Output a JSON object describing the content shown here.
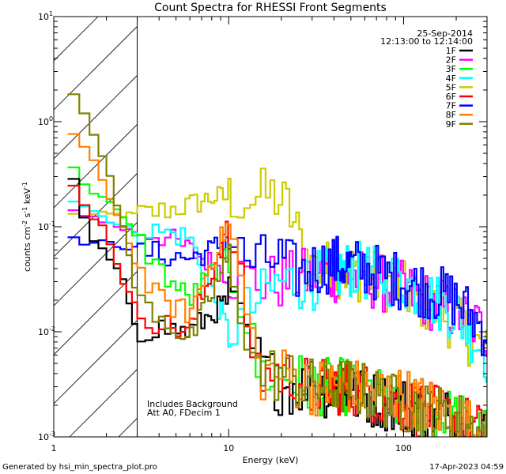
{
  "chart_data": {
    "type": "line",
    "title": "Count Spectra for RHESSI Front Segments",
    "xlabel": "Energy (keV)",
    "ylabel_parts": [
      "counts cm",
      "-2",
      " s",
      "-1",
      " keV",
      "-1"
    ],
    "xscale": "log",
    "yscale": "log",
    "xlim": [
      1,
      300
    ],
    "ylim": [
      0.001,
      10
    ],
    "x_tick_labels": [
      "1",
      "10",
      "100"
    ],
    "x_tick_values": [
      1,
      10,
      100
    ],
    "y_tick_labels": [
      {
        "base": "10",
        "exp": "1",
        "value": 10
      },
      {
        "base": "10",
        "exp": "0",
        "value": 1
      },
      {
        "base": "10",
        "exp": "-1",
        "value": 0.1
      },
      {
        "base": "10",
        "exp": "-2",
        "value": 0.01
      },
      {
        "base": "10",
        "exp": "-3",
        "value": 0.001
      }
    ],
    "date": "25-Sep-2014",
    "time_range": "12:13:00 to 12:14:00",
    "annotations": [
      "Includes Background",
      "Att A0, FDecim 1"
    ],
    "hatched_region_keV": [
      1,
      3
    ],
    "legend_position": "top-right",
    "series": [
      {
        "name": "1F",
        "color": "#000000",
        "x": [
          1.3,
          1.6,
          2.0,
          2.5,
          3.0,
          4,
          6,
          10,
          15,
          20,
          30,
          50,
          100,
          200,
          300
        ],
        "values": [
          0.27,
          0.08,
          0.055,
          0.03,
          0.01,
          0.011,
          0.01,
          0.02,
          0.005,
          0.003,
          0.003,
          0.0025,
          0.002,
          0.0015,
          0.001
        ]
      },
      {
        "name": "2F",
        "color": "#ff00ff",
        "x": [
          1.3,
          1.6,
          2.0,
          2.5,
          3.0,
          4,
          6,
          10,
          15,
          20,
          30,
          50,
          100,
          200,
          300
        ],
        "values": [
          0.14,
          0.13,
          0.11,
          0.095,
          0.09,
          0.085,
          0.06,
          0.035,
          0.03,
          0.03,
          0.035,
          0.035,
          0.025,
          0.015,
          0.01
        ]
      },
      {
        "name": "3F",
        "color": "#00ff00",
        "x": [
          1.3,
          1.6,
          2.0,
          2.5,
          3.0,
          4,
          6,
          10,
          15,
          20,
          30,
          50,
          100,
          200,
          300
        ],
        "values": [
          0.35,
          0.23,
          0.18,
          0.12,
          0.08,
          0.04,
          0.02,
          0.06,
          0.004,
          0.004,
          0.003,
          0.003,
          0.002,
          0.0015,
          0.001
        ]
      },
      {
        "name": "4F",
        "color": "#00ffff",
        "x": [
          1.3,
          1.6,
          2.0,
          2.5,
          3.0,
          4,
          6,
          10,
          15,
          20,
          30,
          50,
          100,
          200,
          300
        ],
        "values": [
          0.18,
          0.15,
          0.12,
          0.1,
          0.09,
          0.09,
          0.08,
          0.01,
          0.02,
          0.03,
          0.03,
          0.04,
          0.03,
          0.015,
          0.006
        ]
      },
      {
        "name": "5F",
        "color": "#cccc00",
        "x": [
          1.3,
          1.6,
          2.0,
          2.5,
          3.0,
          4,
          6,
          8,
          10,
          14,
          18,
          22,
          26,
          30,
          40,
          60,
          100,
          200,
          300
        ],
        "values": [
          0.13,
          0.13,
          0.13,
          0.13,
          0.13,
          0.14,
          0.16,
          0.19,
          0.19,
          0.19,
          0.2,
          0.15,
          0.07,
          0.04,
          0.04,
          0.035,
          0.025,
          0.012,
          0.006
        ]
      },
      {
        "name": "6F",
        "color": "#ff0000",
        "x": [
          1.3,
          1.6,
          2.0,
          2.5,
          3.0,
          4,
          6,
          10,
          12,
          15,
          20,
          30,
          50,
          100,
          200,
          300
        ],
        "values": [
          0.24,
          0.14,
          0.09,
          0.03,
          0.016,
          0.012,
          0.01,
          0.1,
          0.02,
          0.004,
          0.004,
          0.003,
          0.003,
          0.002,
          0.0015,
          0.001
        ]
      },
      {
        "name": "7F",
        "color": "#0000ff",
        "x": [
          1.3,
          1.6,
          2.0,
          2.5,
          3.0,
          4,
          6,
          8,
          10,
          12,
          15,
          20,
          25,
          30,
          40,
          60,
          100,
          200,
          300
        ],
        "values": [
          0.075,
          0.07,
          0.07,
          0.065,
          0.06,
          0.055,
          0.05,
          0.06,
          0.08,
          0.05,
          0.045,
          0.05,
          0.035,
          0.04,
          0.045,
          0.04,
          0.03,
          0.02,
          0.01
        ]
      },
      {
        "name": "8F",
        "color": "#ff8000",
        "x": [
          1.3,
          1.6,
          2.0,
          2.5,
          3.0,
          4,
          6,
          10,
          15,
          20,
          30,
          50,
          100,
          200,
          300
        ],
        "values": [
          0.75,
          0.5,
          0.22,
          0.1,
          0.04,
          0.02,
          0.015,
          0.11,
          0.004,
          0.004,
          0.003,
          0.003,
          0.0025,
          0.0015,
          0.001
        ]
      },
      {
        "name": "9F",
        "color": "#808000",
        "x": [
          1.3,
          1.6,
          2.0,
          2.5,
          3.0,
          4,
          6,
          10,
          15,
          20,
          30,
          50,
          100,
          200,
          300
        ],
        "values": [
          1.8,
          0.9,
          0.4,
          0.1,
          0.02,
          0.015,
          0.008,
          0.05,
          0.004,
          0.004,
          0.003,
          0.003,
          0.002,
          0.0015,
          0.001
        ]
      }
    ]
  },
  "footer": {
    "left": "Generated by hsi_min_spectra_plot.pro",
    "right": "17-Apr-2023 04:59"
  }
}
